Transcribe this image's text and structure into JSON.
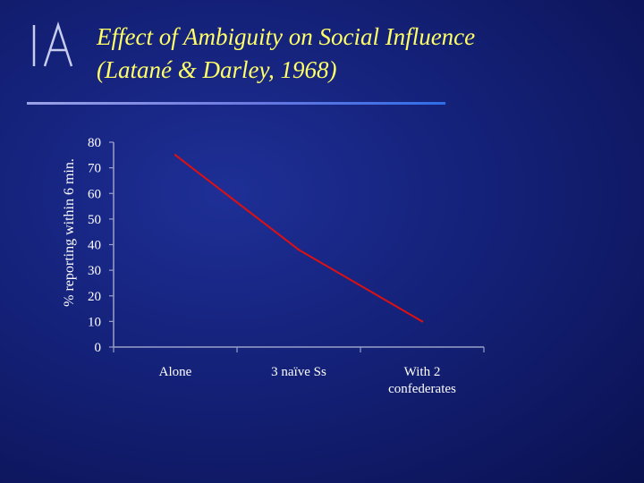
{
  "slide": {
    "title": "Effect of Ambiguity on Social Influence",
    "subtitle": "(Latané & Darley, 1968)",
    "logo_text": "IA",
    "colors": {
      "title": "#ffff66",
      "line": "#e01010",
      "axis": "#9aa0c8",
      "text": "#ffffff"
    }
  },
  "chart_data": {
    "type": "line",
    "categories": [
      "Alone",
      "3 naïve Ss",
      "With 2 confederates"
    ],
    "category_lines": [
      [
        "Alone"
      ],
      [
        "3 naïve Ss"
      ],
      [
        "With 2",
        "confederates"
      ]
    ],
    "series": [
      {
        "values": [
          75,
          38,
          10
        ]
      }
    ],
    "ylabel": "% reporting within 6 min.",
    "xlabel": "",
    "ylim": [
      0,
      80
    ],
    "yticks": [
      0,
      10,
      20,
      30,
      40,
      50,
      60,
      70,
      80
    ],
    "grid": false,
    "legend": "none"
  }
}
